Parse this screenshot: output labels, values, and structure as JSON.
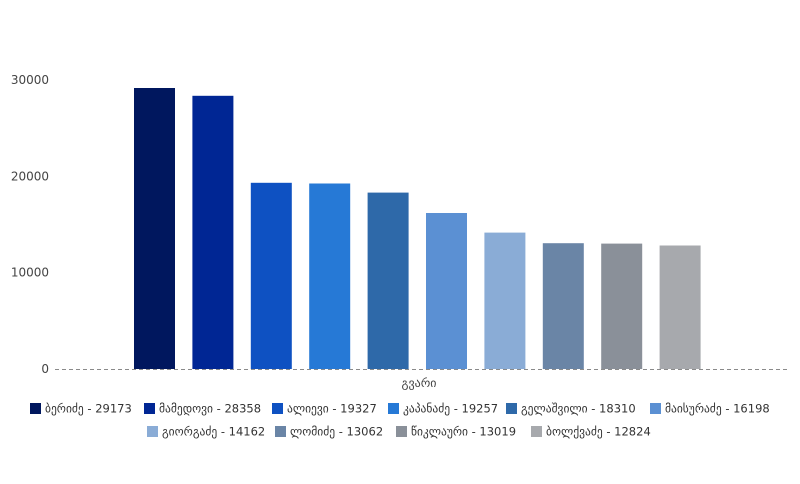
{
  "chart_data": {
    "type": "bar",
    "xlabel": "გვარი",
    "ylim": [
      0,
      31000
    ],
    "y_ticks": [
      0,
      10000,
      20000,
      30000
    ],
    "grid": false,
    "legend_placement": "bottom",
    "categories": [
      "ბერიძე",
      "მამედოვი",
      "ალიევი",
      "კაპანაძე",
      "გელაშვილი",
      "მაისურაძე",
      "გიორგაძე",
      "ლომიძე",
      "წიკლაური",
      "ბოლქვაძე"
    ],
    "values": [
      29173,
      28358,
      19327,
      19257,
      18310,
      16198,
      14162,
      13062,
      13019,
      12824
    ],
    "colors": [
      "#00175e",
      "#002694",
      "#0e51c2",
      "#2679d6",
      "#2e69a9",
      "#5b90d3",
      "#8aacd6",
      "#6a85a6",
      "#8a9099",
      "#a7a9ad"
    ],
    "legend_labels": [
      "ბერიძე - 29173",
      "მამედოვი - 28358",
      "ალიევი - 19327",
      "კაპანაძე - 19257",
      "გელაშვილი - 18310",
      "მაისურაძე - 16198",
      "გიორგაძე - 14162",
      "ლომიძე - 13062",
      "წიკლაური - 13019",
      "ბოლქვაძე - 12824"
    ]
  }
}
